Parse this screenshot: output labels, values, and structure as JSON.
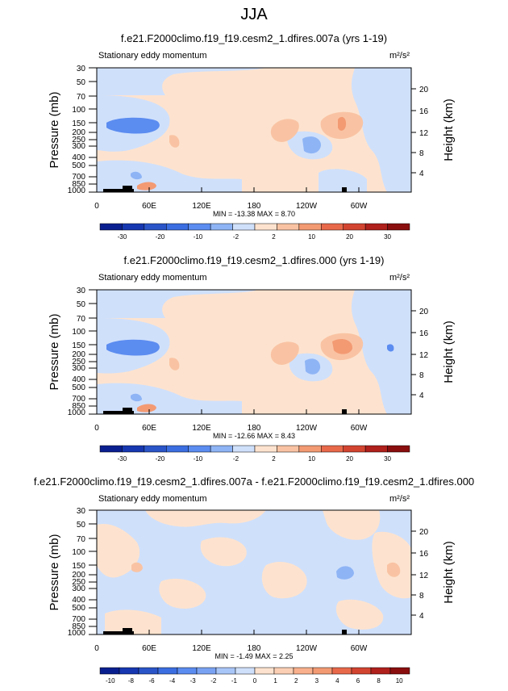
{
  "season": "JJA",
  "colors": {
    "blue5": "#2a55c8",
    "blue4": "#3b6ee0",
    "blue3": "#5b8cf0",
    "blue2": "#8eb4f5",
    "blue1": "#cfe0fb",
    "orange1": "#fde3cf",
    "orange2": "#f9c3a3",
    "orange3": "#f39a73",
    "orange4": "#e8694a",
    "red5": "#c8302a",
    "neutral": "#cfe0fb"
  },
  "axes": {
    "y_left_label": "Pressure (mb)",
    "y_right_label": "Height (km)",
    "pressure_ticks": [
      "30",
      "50",
      "70",
      "100",
      "150",
      "200",
      "250",
      "300",
      "400",
      "500",
      "700",
      "850",
      "1000"
    ],
    "height_ticks": [
      "20",
      "16",
      "12",
      "8",
      "4"
    ],
    "lon_ticks": [
      "0",
      "60E",
      "120E",
      "180",
      "120W",
      "60W"
    ]
  },
  "panels": [
    {
      "title": "f.e21.F2000climo.f19_f19.cesm2_1.dfires.007a (yrs 1-19)",
      "subtitle": "Stationary eddy momentum",
      "units": "m²/s²",
      "stats": "MIN = -13.38   MAX =   8.70",
      "colorbar_labels": [
        "-30",
        "-20",
        "-10",
        "-2",
        "2",
        "10",
        "20",
        "30"
      ]
    },
    {
      "title": "f.e21.F2000climo.f19_f19.cesm2_1.dfires.000 (yrs 1-19)",
      "subtitle": "Stationary eddy momentum",
      "units": "m²/s²",
      "stats": "MIN = -12.66   MAX =   8.43",
      "colorbar_labels": [
        "-30",
        "-20",
        "-10",
        "-2",
        "2",
        "10",
        "20",
        "30"
      ]
    },
    {
      "title": "f.e21.F2000climo.f19_f19.cesm2_1.dfires.007a - f.e21.F2000climo.f19_f19.cesm2_1.dfires.000",
      "subtitle": "Stationary eddy momentum",
      "units": "m²/s²",
      "stats": "MIN =  -1.49   MAX =   2.25",
      "colorbar_labels": [
        "-10",
        "-8",
        "-6",
        "-4",
        "-3",
        "-2",
        "-1",
        "0",
        "1",
        "2",
        "3",
        "4",
        "6",
        "8",
        "10"
      ]
    }
  ],
  "chart_data": [
    {
      "type": "heatmap",
      "title": "f.e21.F2000climo.f19_f19.cesm2_1.dfires.007a (yrs 1-19)",
      "variable": "Stationary eddy momentum",
      "units": "m²/s²",
      "x_ticks": [
        "0",
        "60E",
        "120E",
        "180",
        "120W",
        "60W"
      ],
      "y_ticks_pressure_mb": [
        30,
        50,
        70,
        100,
        150,
        200,
        250,
        300,
        400,
        500,
        700,
        850,
        1000
      ],
      "y_ticks_height_km": [
        20,
        16,
        12,
        8,
        4
      ],
      "min": -13.38,
      "max": 8.7,
      "color_levels": [
        -30,
        -20,
        -10,
        -2,
        2,
        10,
        20,
        30
      ]
    },
    {
      "type": "heatmap",
      "title": "f.e21.F2000climo.f19_f19.cesm2_1.dfires.000 (yrs 1-19)",
      "variable": "Stationary eddy momentum",
      "units": "m²/s²",
      "x_ticks": [
        "0",
        "60E",
        "120E",
        "180",
        "120W",
        "60W"
      ],
      "y_ticks_pressure_mb": [
        30,
        50,
        70,
        100,
        150,
        200,
        250,
        300,
        400,
        500,
        700,
        850,
        1000
      ],
      "y_ticks_height_km": [
        20,
        16,
        12,
        8,
        4
      ],
      "min": -12.66,
      "max": 8.43,
      "color_levels": [
        -30,
        -20,
        -10,
        -2,
        2,
        10,
        20,
        30
      ]
    },
    {
      "type": "heatmap",
      "title": "f.e21.F2000climo.f19_f19.cesm2_1.dfires.007a - f.e21.F2000climo.f19_f19.cesm2_1.dfires.000",
      "variable": "Stationary eddy momentum",
      "units": "m²/s²",
      "x_ticks": [
        "0",
        "60E",
        "120E",
        "180",
        "120W",
        "60W"
      ],
      "y_ticks_pressure_mb": [
        30,
        50,
        70,
        100,
        150,
        200,
        250,
        300,
        400,
        500,
        700,
        850,
        1000
      ],
      "y_ticks_height_km": [
        20,
        16,
        12,
        8,
        4
      ],
      "min": -1.49,
      "max": 2.25,
      "color_levels": [
        -10,
        -8,
        -6,
        -4,
        -3,
        -2,
        -1,
        0,
        1,
        2,
        3,
        4,
        6,
        8,
        10
      ]
    }
  ]
}
